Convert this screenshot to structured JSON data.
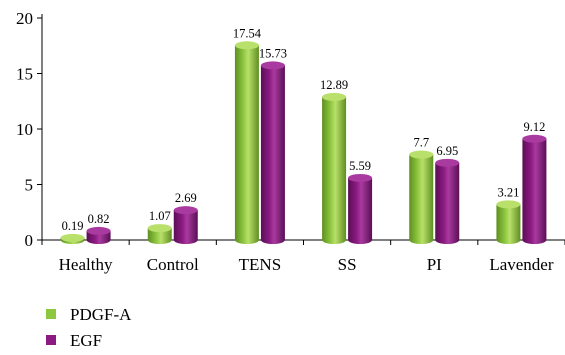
{
  "chart_data": {
    "type": "bar",
    "style": "3d-cylinder",
    "categories": [
      "Healthy",
      "Control",
      "TENS",
      "SS",
      "PI",
      "Lavender"
    ],
    "series": [
      {
        "name": "PDGF-A",
        "values": [
          0.19,
          1.07,
          17.54,
          12.89,
          7.7,
          3.21
        ],
        "labels": [
          "0.19",
          "1.07",
          "17.54",
          "12.89",
          "7.7",
          "3.21"
        ],
        "color": "#8dc63f",
        "dark": "#5f8f21",
        "top": "#b9e06a"
      },
      {
        "name": "EGF",
        "values": [
          0.82,
          2.69,
          15.73,
          5.59,
          6.95,
          9.12
        ],
        "labels": [
          "0.82",
          "2.69",
          "15.73",
          "5.59",
          "6.95",
          "9.12"
        ],
        "color": "#8b1a82",
        "dark": "#5a0f55",
        "top": "#a93a9f"
      }
    ],
    "yticks": [
      0,
      5,
      10,
      15,
      20
    ],
    "ylim": [
      0,
      20
    ],
    "grid": false,
    "legend_position": "bottom-left",
    "title": "",
    "xlabel": "",
    "ylabel": ""
  }
}
